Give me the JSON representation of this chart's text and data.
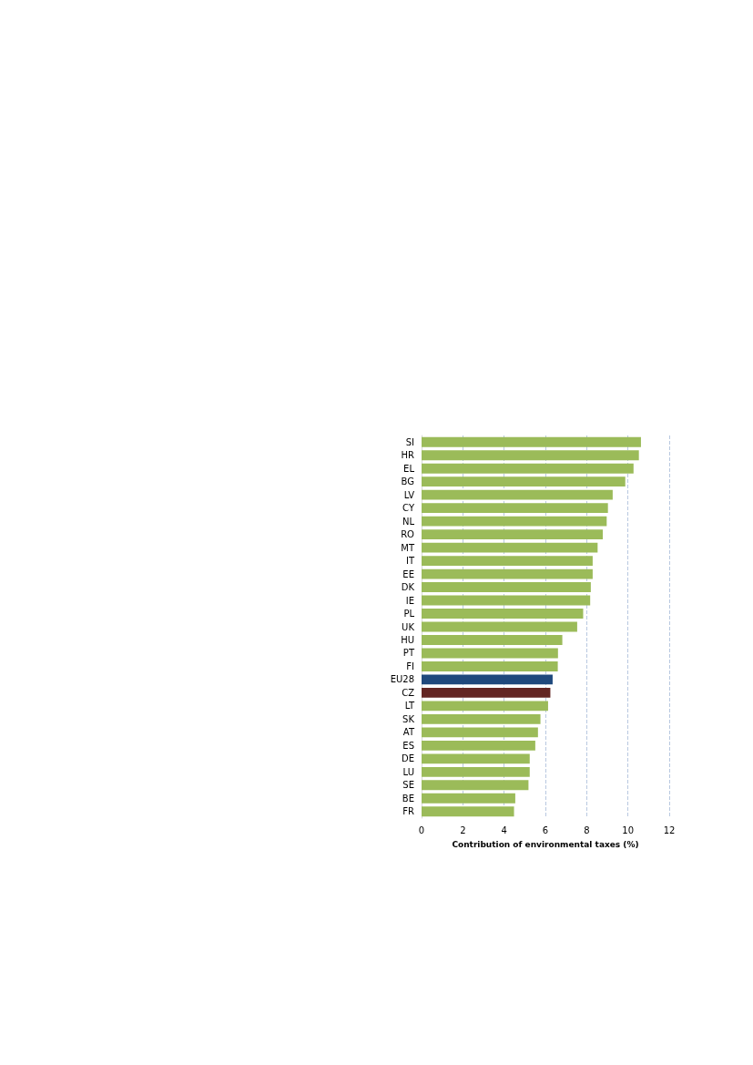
{
  "chart_data": {
    "type": "bar",
    "orientation": "horizontal",
    "xlabel": "Contribution of environmental taxes (%)",
    "categories": [
      "SI",
      "HR",
      "EL",
      "BG",
      "LV",
      "CY",
      "NL",
      "RO",
      "MT",
      "IT",
      "EE",
      "DK",
      "IE",
      "PL",
      "UK",
      "HU",
      "PT",
      "FI",
      "EU28",
      "CZ",
      "LT",
      "SK",
      "AT",
      "ES",
      "DE",
      "LU",
      "SE",
      "BE",
      "FR"
    ],
    "values": [
      10.63,
      10.53,
      10.27,
      9.87,
      9.26,
      9.03,
      8.97,
      8.78,
      8.53,
      8.29,
      8.29,
      8.2,
      8.17,
      7.83,
      7.54,
      6.82,
      6.61,
      6.6,
      6.35,
      6.24,
      6.13,
      5.76,
      5.64,
      5.51,
      5.24,
      5.24,
      5.18,
      4.54,
      4.48
    ],
    "colors": [
      "#9bbb59",
      "#9bbb59",
      "#9bbb59",
      "#9bbb59",
      "#9bbb59",
      "#9bbb59",
      "#9bbb59",
      "#9bbb59",
      "#9bbb59",
      "#9bbb59",
      "#9bbb59",
      "#9bbb59",
      "#9bbb59",
      "#9bbb59",
      "#9bbb59",
      "#9bbb59",
      "#9bbb59",
      "#9bbb59",
      "#1f497d",
      "#632523",
      "#9bbb59",
      "#9bbb59",
      "#9bbb59",
      "#9bbb59",
      "#9bbb59",
      "#9bbb59",
      "#9bbb59",
      "#9bbb59",
      "#9bbb59"
    ],
    "xlim": [
      0,
      12
    ],
    "xticks": [
      0,
      2,
      4,
      6,
      8,
      10,
      12
    ],
    "grid": "x"
  }
}
